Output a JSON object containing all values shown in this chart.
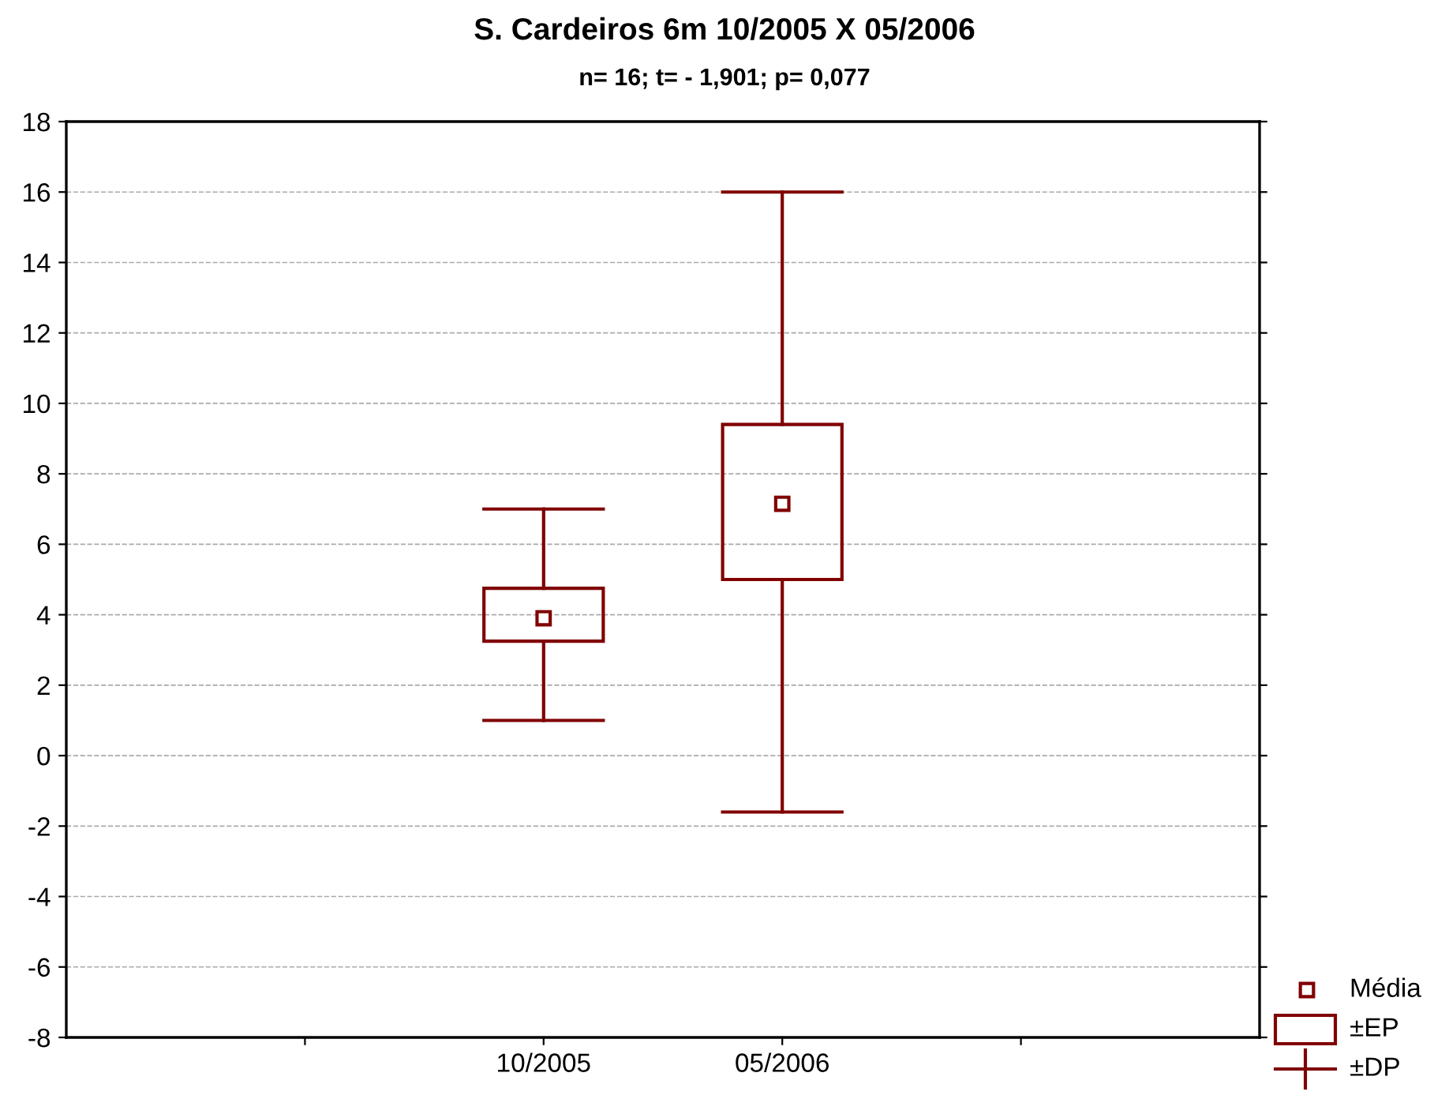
{
  "chart_data": {
    "type": "box",
    "title": "S. Cardeiros 6m 10/2005 X 05/2006",
    "subtitle": "n= 16; t= - 1,901; p= 0,077",
    "categories": [
      "10/2005",
      "05/2006"
    ],
    "series": [
      {
        "color": "#800000",
        "boxes": [
          {
            "low": 1.0,
            "q1": 3.25,
            "q3": 4.75,
            "high": 7.0,
            "mean": 3.9
          },
          {
            "low": -1.6,
            "q1": 5.0,
            "q3": 9.4,
            "high": 16.0,
            "mean": 7.15
          }
        ]
      }
    ],
    "annotations": [
      "Média",
      "±EP",
      "±DP"
    ],
    "ylim": [
      -8,
      18
    ],
    "yticks": [
      -8,
      -6,
      -4,
      -2,
      0,
      2,
      4,
      6,
      8,
      10,
      12,
      14,
      16,
      18
    ],
    "grid": "y",
    "marker": "square"
  }
}
